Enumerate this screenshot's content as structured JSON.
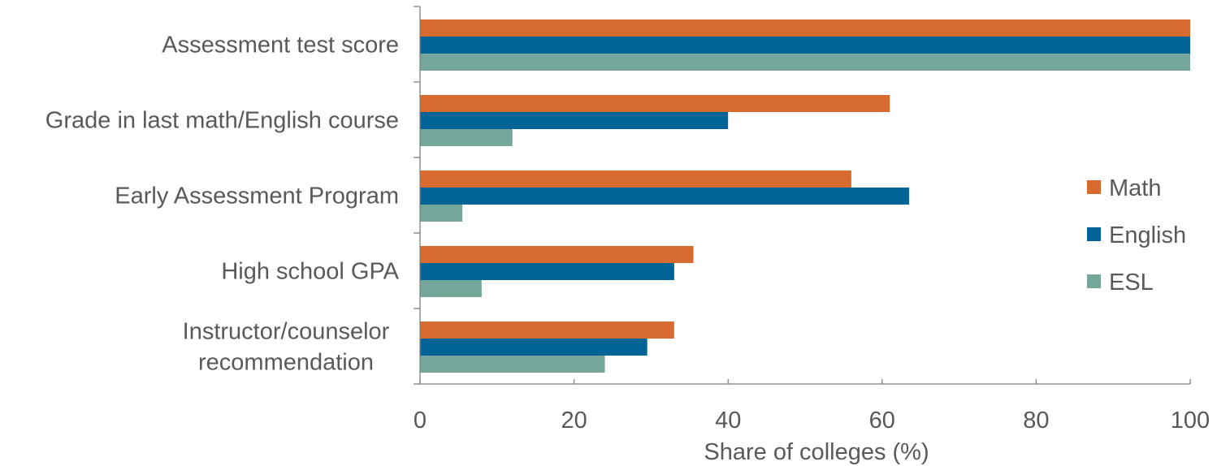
{
  "chart_data": {
    "type": "bar",
    "orientation": "horizontal",
    "categories": [
      [
        "Assessment test score"
      ],
      [
        "Grade in last math/English course"
      ],
      [
        "Early Assessment Program"
      ],
      [
        "High school GPA"
      ],
      [
        "Instructor/counselor",
        "recommendation"
      ]
    ],
    "series": [
      {
        "name": "Math",
        "color": "#d76b2f",
        "values": [
          100,
          61,
          56,
          35.5,
          33
        ]
      },
      {
        "name": "English",
        "color": "#016497",
        "values": [
          100,
          40,
          63.5,
          33,
          29.5
        ]
      },
      {
        "name": "ESL",
        "color": "#74a699",
        "values": [
          100,
          12,
          5.5,
          8,
          24
        ]
      }
    ],
    "xlabel": "Share of colleges (%)",
    "ylabel": "",
    "xlim": [
      0,
      100
    ],
    "xticks": [
      0,
      20,
      40,
      60,
      80,
      100
    ],
    "grid": false,
    "legend_position": "right"
  }
}
